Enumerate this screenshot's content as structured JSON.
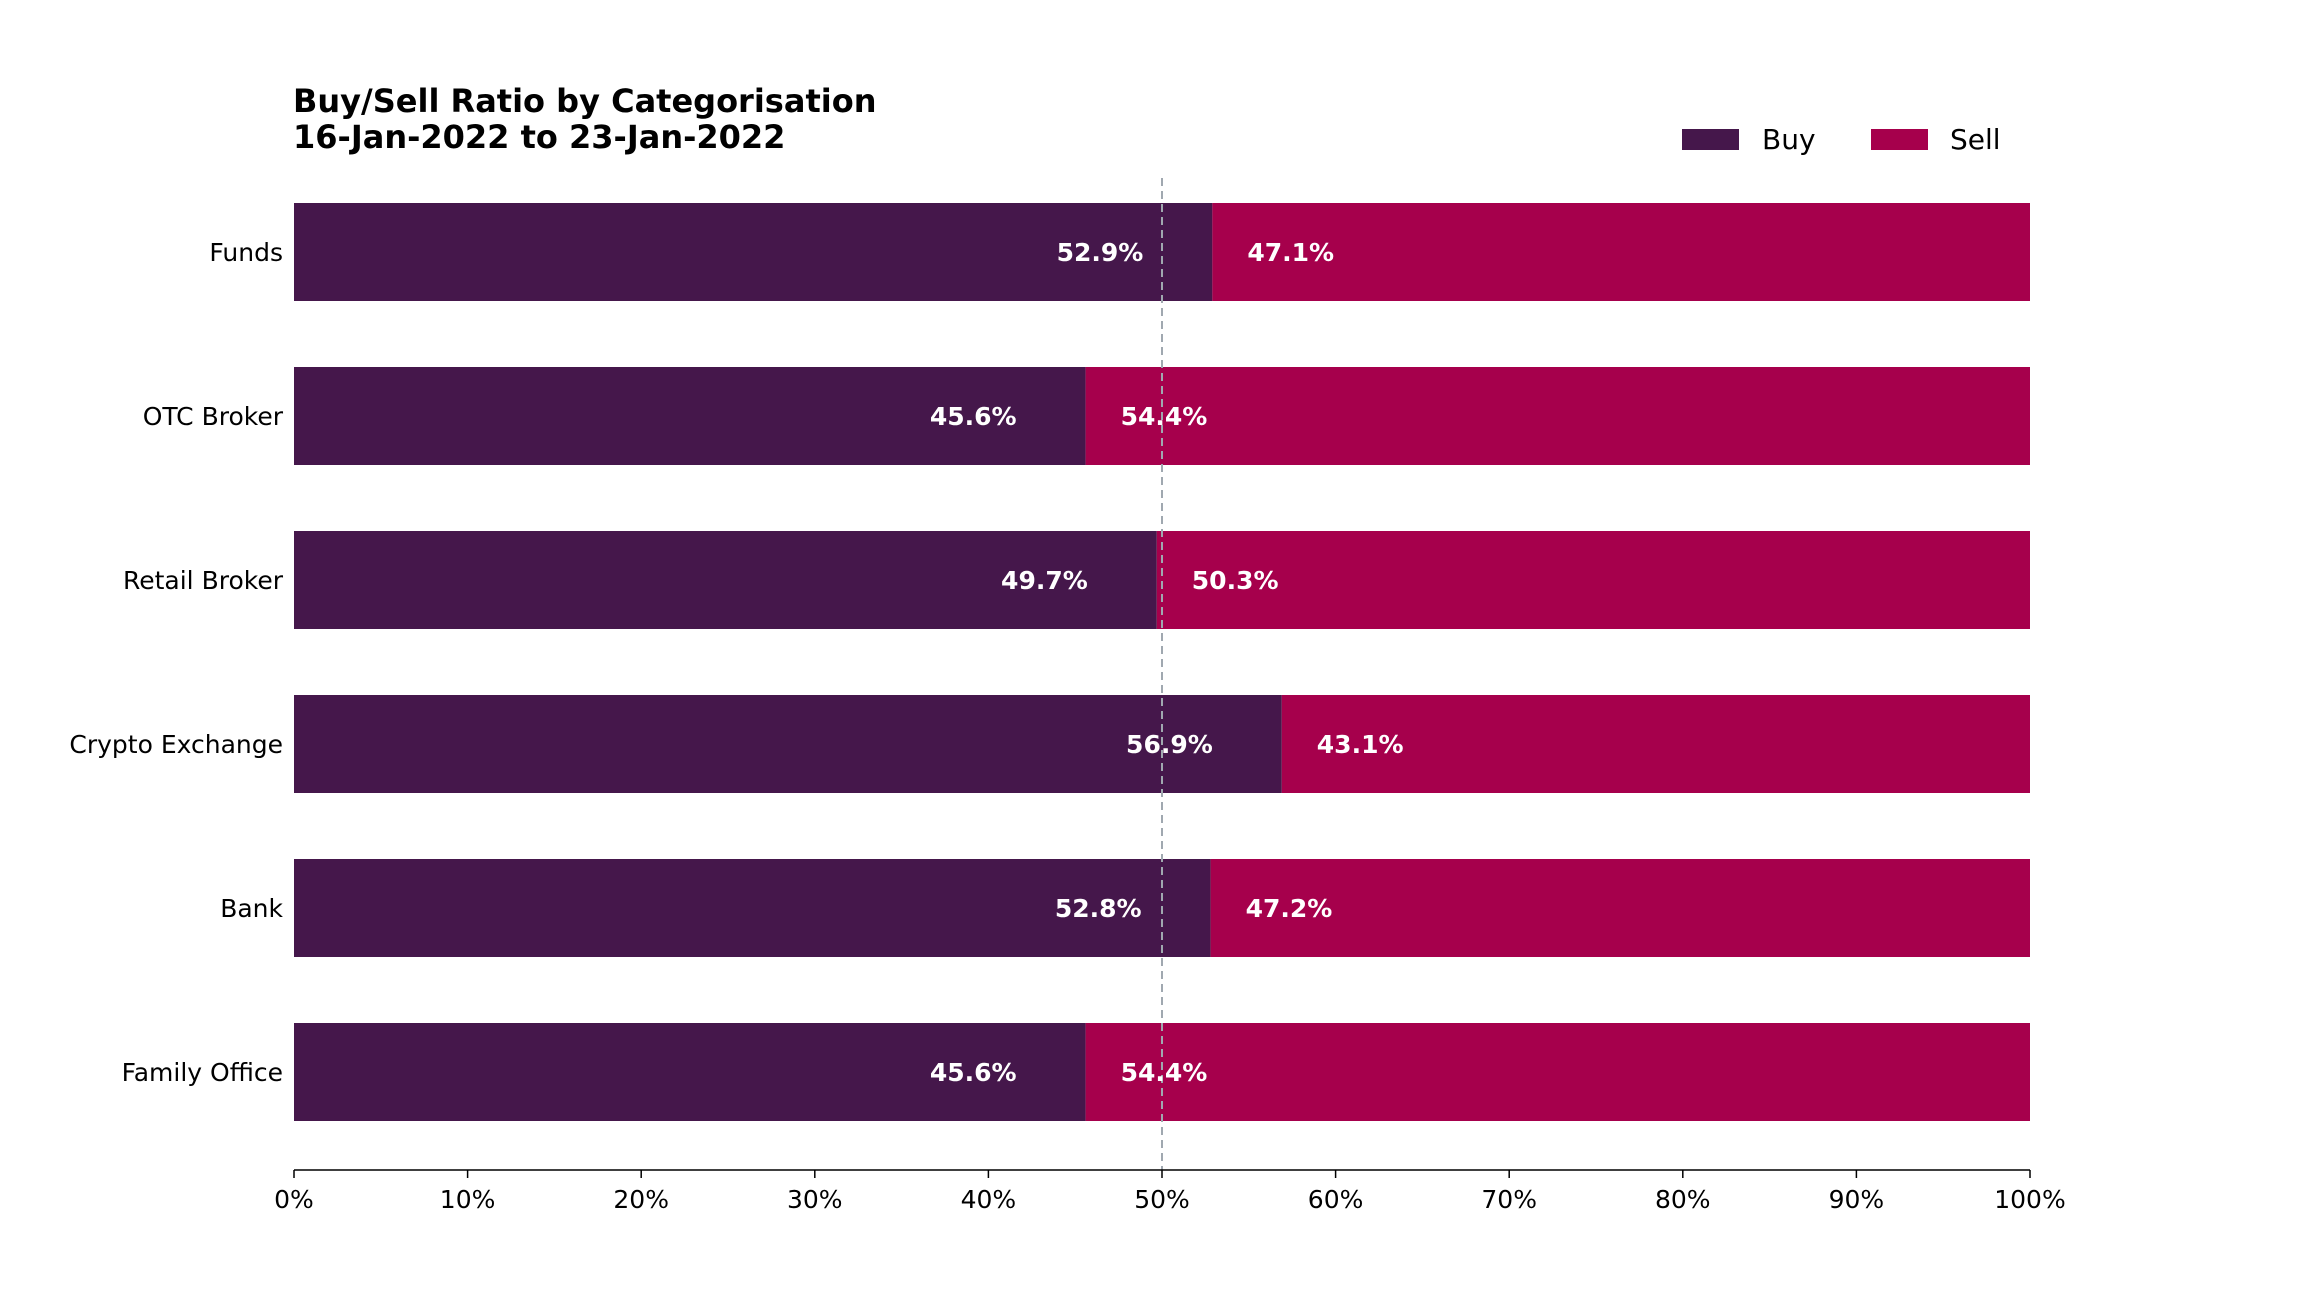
{
  "chart_data": {
    "type": "bar",
    "orientation": "horizontal",
    "stacked": true,
    "title": "Buy/Sell Ratio by Categorisation",
    "subtitle": "16-Jan-2022 to 23-Jan-2022",
    "categories": [
      "Funds",
      "OTC Broker",
      "Retail Broker",
      "Crypto Exchange",
      "Bank",
      "Family Office"
    ],
    "series": [
      {
        "name": "Buy",
        "color": "#45174b",
        "values": [
          52.9,
          45.6,
          49.7,
          56.9,
          52.8,
          45.6
        ],
        "labels": [
          "52.9%",
          "45.6%",
          "49.7%",
          "56.9%",
          "52.8%",
          "45.6%"
        ]
      },
      {
        "name": "Sell",
        "color": "#a6004c",
        "values": [
          47.1,
          54.4,
          50.3,
          43.1,
          47.2,
          54.4
        ],
        "labels": [
          "47.1%",
          "54.4%",
          "50.3%",
          "43.1%",
          "47.2%",
          "54.4%"
        ]
      }
    ],
    "xlim": [
      0,
      100
    ],
    "xticks": [
      0,
      10,
      20,
      30,
      40,
      50,
      60,
      70,
      80,
      90,
      100
    ],
    "xtick_labels": [
      "0%",
      "10%",
      "20%",
      "30%",
      "40%",
      "50%",
      "60%",
      "70%",
      "80%",
      "90%",
      "100%"
    ],
    "reference_line": 50,
    "reference_line_color": "#a0a8b0",
    "xlabel": "",
    "ylabel": "",
    "grid": false,
    "legend_position": "top-right",
    "data_label_color": "#ffffff"
  }
}
